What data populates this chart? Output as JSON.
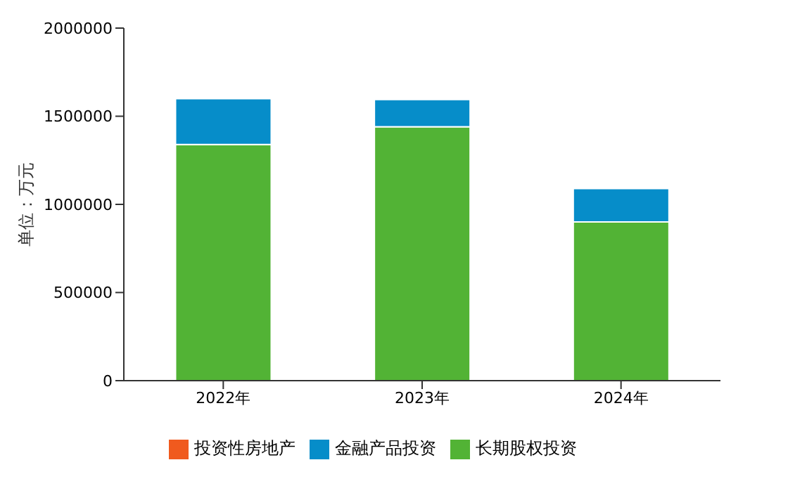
{
  "chart_data": {
    "type": "bar",
    "stacked": true,
    "ylabel": "单位：万元",
    "categories": [
      "2022年",
      "2023年",
      "2024年"
    ],
    "series": [
      {
        "name": "长期股权投资",
        "color": "#52b335",
        "values": [
          1340000,
          1440000,
          900000
        ]
      },
      {
        "name": "金融产品投资",
        "color": "#068dc9",
        "values": [
          260000,
          155000,
          190000
        ]
      },
      {
        "name": "投资性房地产",
        "color": "#f05a1e",
        "values": [
          0,
          0,
          0
        ]
      }
    ],
    "ylim": [
      0,
      2000000
    ],
    "yticks": [
      0,
      500000,
      1000000,
      1500000,
      2000000
    ],
    "grid": false,
    "legend": "bottom"
  }
}
